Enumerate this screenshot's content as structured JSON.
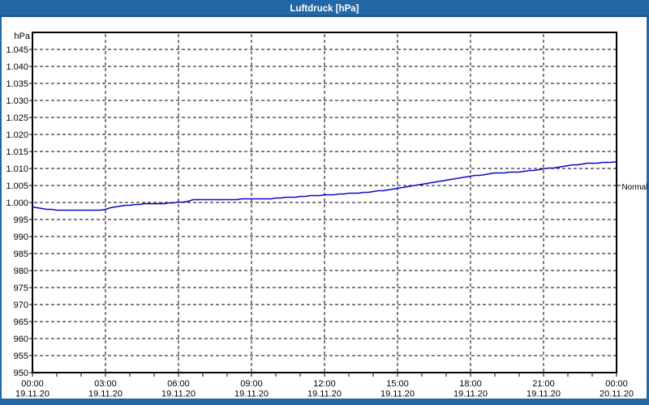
{
  "window": {
    "title": "Luftdruck [hPa]"
  },
  "frame_color": "#2168a4",
  "chart_data": {
    "type": "line",
    "title": "Luftdruck [hPa]",
    "ylabel": "hPa",
    "ylim": [
      950,
      1050
    ],
    "ytick_step": 5,
    "ytick_labels": [
      "1.045",
      "1.040",
      "1.035",
      "1.030",
      "1.025",
      "1.020",
      "1.015",
      "1.010",
      "1.005",
      "1.000",
      "995",
      "990",
      "985",
      "980",
      "975",
      "970",
      "965",
      "960",
      "955",
      "950"
    ],
    "xlim_hours": [
      0,
      24
    ],
    "xtick_step_hours": 3,
    "minor_xtick_hours": 1,
    "x_labels": [
      {
        "time": "00:00",
        "date": "19.11.20"
      },
      {
        "time": "03:00",
        "date": "19.11.20"
      },
      {
        "time": "06:00",
        "date": "19.11.20"
      },
      {
        "time": "09:00",
        "date": "19.11.20"
      },
      {
        "time": "12:00",
        "date": "19.11.20"
      },
      {
        "time": "15:00",
        "date": "19.11.20"
      },
      {
        "time": "18:00",
        "date": "19.11.20"
      },
      {
        "time": "21:00",
        "date": "19.11.20"
      },
      {
        "time": "00:00",
        "date": "20.11.20"
      }
    ],
    "normal_label": "Normal",
    "normal_value": 1005,
    "line_color": "#0909c8",
    "grid": true,
    "series": [
      {
        "name": "Luftdruck",
        "x": [
          0,
          0.3,
          0.7,
          1.5,
          2.5,
          3.0,
          3.3,
          3.7,
          4.3,
          5.0,
          5.5,
          6.0,
          6.3,
          6.6,
          7.5,
          9.0,
          9.8,
          10.3,
          11.0,
          12.0,
          12.8,
          13.5,
          14.0,
          15.0,
          16.0,
          17.0,
          18.0,
          19.0,
          20.0,
          21.0,
          22.0,
          23.0,
          24.0
        ],
        "y": [
          998.9,
          998.3,
          998.0,
          997.9,
          997.9,
          998.0,
          998.7,
          999.2,
          999.6,
          999.8,
          999.9,
          1000.2,
          1000.3,
          1000.9,
          1001.0,
          1001.1,
          1001.2,
          1001.5,
          1001.9,
          1002.3,
          1002.7,
          1002.9,
          1003.3,
          1004.2,
          1005.4,
          1006.6,
          1007.8,
          1008.7,
          1009.1,
          1009.9,
          1011.0,
          1011.7,
          1012.1
        ]
      }
    ]
  }
}
